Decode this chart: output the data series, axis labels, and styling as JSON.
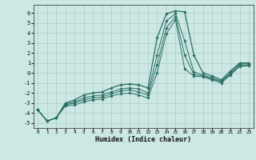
{
  "xlabel": "Humidex (Indice chaleur)",
  "xlim": [
    -0.5,
    23.5
  ],
  "ylim": [
    -5.5,
    6.8
  ],
  "xticks": [
    0,
    1,
    2,
    3,
    4,
    5,
    6,
    7,
    8,
    9,
    10,
    11,
    12,
    13,
    14,
    15,
    16,
    17,
    18,
    19,
    20,
    21,
    22,
    23
  ],
  "yticks": [
    -5,
    -4,
    -3,
    -2,
    -1,
    0,
    1,
    2,
    3,
    4,
    5,
    6
  ],
  "bg_color": "#cbe8e4",
  "grid_color": "#b0ccc8",
  "line_color": "#2d6e62",
  "series": [
    {
      "x": [
        0,
        1,
        2,
        3,
        4,
        5,
        6,
        7,
        8,
        9,
        10,
        11,
        12,
        13,
        14,
        15,
        16,
        17,
        18,
        19,
        20,
        21,
        22,
        23
      ],
      "y": [
        -3.7,
        -4.8,
        -4.5,
        -3.0,
        -2.7,
        -2.2,
        -2.0,
        -1.9,
        -1.5,
        -1.2,
        -1.1,
        -1.2,
        -1.5,
        3.5,
        5.9,
        6.2,
        6.1,
        1.8,
        0.0,
        -0.3,
        -0.7,
        0.2,
        1.0,
        1.0
      ]
    },
    {
      "x": [
        0,
        1,
        2,
        3,
        4,
        5,
        6,
        7,
        8,
        9,
        10,
        11,
        12,
        13,
        14,
        15,
        16,
        17,
        18,
        19,
        20,
        21,
        22,
        23
      ],
      "y": [
        -3.7,
        -4.8,
        -4.5,
        -3.1,
        -2.9,
        -2.5,
        -2.3,
        -2.2,
        -1.9,
        -1.6,
        -1.5,
        -1.6,
        -2.0,
        1.8,
        5.2,
        5.9,
        3.2,
        0.1,
        -0.2,
        -0.5,
        -0.8,
        -0.0,
        0.9,
        0.9
      ]
    },
    {
      "x": [
        0,
        1,
        2,
        3,
        4,
        5,
        6,
        7,
        8,
        9,
        10,
        11,
        12,
        13,
        14,
        15,
        16,
        17,
        18,
        19,
        20,
        21,
        22,
        23
      ],
      "y": [
        -3.7,
        -4.8,
        -4.5,
        -3.2,
        -3.0,
        -2.7,
        -2.5,
        -2.4,
        -2.1,
        -1.8,
        -1.7,
        -1.9,
        -2.2,
        0.8,
        4.5,
        5.6,
        1.8,
        -0.15,
        -0.3,
        -0.6,
        -0.9,
        -0.1,
        0.75,
        0.8
      ]
    },
    {
      "x": [
        0,
        1,
        2,
        3,
        4,
        5,
        6,
        7,
        8,
        9,
        10,
        11,
        12,
        13,
        14,
        15,
        16,
        17,
        18,
        19,
        20,
        21,
        22,
        23
      ],
      "y": [
        -3.7,
        -4.8,
        -4.5,
        -3.3,
        -3.2,
        -2.9,
        -2.7,
        -2.6,
        -2.3,
        -2.1,
        -2.0,
        -2.2,
        -2.5,
        0.0,
        3.9,
        5.3,
        0.4,
        -0.3,
        -0.4,
        -0.7,
        -1.0,
        -0.2,
        0.65,
        0.7
      ]
    }
  ]
}
